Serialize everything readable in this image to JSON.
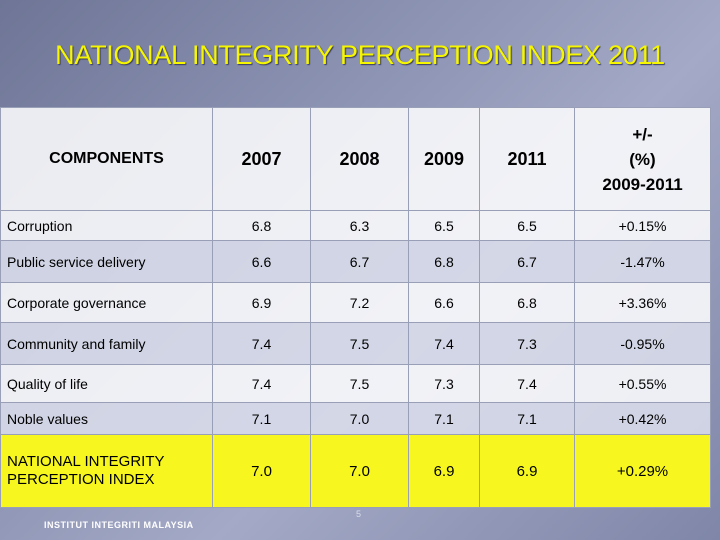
{
  "title": "NATIONAL INTEGRITY PERCEPTION INDEX 2011",
  "table": {
    "headers": {
      "components": "COMPONENTS",
      "y2007": "2007",
      "y2008": "2008",
      "y2009": "2009",
      "y2011": "2011",
      "change_line1": "+/-",
      "change_line2": "(%)",
      "change_line3": "2009-2011"
    },
    "rows": [
      {
        "label": "Corruption",
        "v2007": "6.8",
        "v2008": "6.3",
        "v2009": "6.5",
        "v2011": "6.5",
        "change": "+0.15%"
      },
      {
        "label": "Public service delivery",
        "v2007": "6.6",
        "v2008": "6.7",
        "v2009": "6.8",
        "v2011": "6.7",
        "change": "-1.47%"
      },
      {
        "label": "Corporate governance",
        "v2007": "6.9",
        "v2008": "7.2",
        "v2009": "6.6",
        "v2011": "6.8",
        "change": "+3.36%"
      },
      {
        "label": "Community and family",
        "v2007": "7.4",
        "v2008": "7.5",
        "v2009": "7.4",
        "v2011": "7.3",
        "change": "-0.95%"
      },
      {
        "label": "Quality of life",
        "v2007": "7.4",
        "v2008": "7.5",
        "v2009": "7.3",
        "v2011": "7.4",
        "change": "+0.55%"
      },
      {
        "label": "Noble values",
        "v2007": "7.1",
        "v2008": "7.0",
        "v2009": "7.1",
        "v2011": "7.1",
        "change": "+0.42%"
      }
    ],
    "total": {
      "label_line1": "NATIONAL INTEGRITY",
      "label_line2": "PERCEPTION INDEX",
      "v2007": "7.0",
      "v2008": "7.0",
      "v2009": "6.9",
      "v2011": "6.9",
      "change": "+0.29%"
    }
  },
  "footer": "INSTITUT INTEGRITI MALAYSIA",
  "page_number": "5",
  "colors": {
    "title": "#f6f600",
    "total_row": "#f7f71f"
  }
}
